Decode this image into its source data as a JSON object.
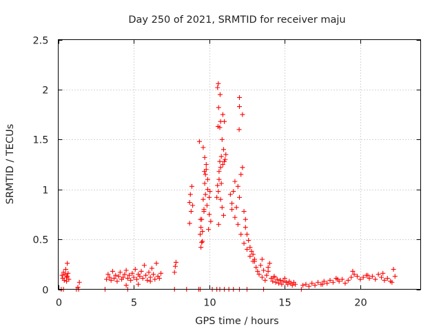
{
  "chart_data": {
    "type": "scatter",
    "title": "Day 250 of 2021, SRMTID for receiver maju",
    "xlabel": "GPS time / hours",
    "ylabel": "SRMTID / TECUs",
    "xlim": [
      0,
      24
    ],
    "ylim": [
      0,
      2.5
    ],
    "x_ticks": [
      0,
      5,
      10,
      15,
      20
    ],
    "y_ticks": [
      0,
      0.5,
      1,
      1.5,
      2,
      2.5
    ],
    "x_tick_labels": [
      "0",
      "5",
      "10",
      "15",
      "20"
    ],
    "y_tick_labels": [
      "0",
      "0.5",
      "1",
      "1.5",
      "2",
      "2.5"
    ],
    "grid": true,
    "marker": "+",
    "series": [
      {
        "name": "SRMTID",
        "color": "#ff0000",
        "x": [
          0.25,
          0.3,
          0.35,
          0.4,
          0.45,
          0.5,
          0.55,
          0.6,
          0.65,
          0.7,
          0.55,
          0.6,
          1.4,
          1.3,
          3.2,
          3.3,
          3.4,
          3.5,
          3.6,
          3.7,
          3.8,
          3.9,
          4.0,
          4.1,
          4.2,
          4.3,
          4.4,
          4.5,
          4.6,
          4.7,
          4.8,
          4.9,
          5.0,
          5.1,
          5.2,
          5.3,
          5.4,
          5.5,
          5.6,
          5.7,
          5.8,
          5.9,
          6.0,
          6.1,
          6.2,
          6.3,
          6.4,
          6.5,
          6.6,
          6.7,
          6.8,
          5.3,
          6.1,
          4.5,
          7.7,
          7.75,
          7.8,
          8.7,
          8.75,
          8.8,
          8.85,
          8.9,
          8.7,
          9.4,
          9.45,
          9.5,
          9.55,
          9.6,
          9.65,
          9.7,
          9.75,
          9.8,
          9.85,
          9.9,
          9.95,
          10.0,
          10.05,
          10.1,
          9.5,
          9.6,
          9.7,
          9.8,
          9.9,
          10.0,
          9.45,
          9.55,
          9.65,
          9.75,
          10.5,
          10.55,
          10.6,
          10.65,
          10.7,
          10.75,
          10.8,
          10.85,
          10.9,
          10.95,
          11.0,
          11.05,
          11.1,
          10.6,
          10.7,
          10.8,
          10.9,
          11.0,
          10.55,
          10.65,
          10.75,
          10.85,
          10.95,
          11.4,
          11.5,
          11.6,
          11.7,
          11.8,
          11.9,
          12.0,
          12.1,
          12.2,
          12.3,
          12.4,
          12.5,
          12.6,
          12.7,
          12.8,
          12.9,
          13.0,
          11.5,
          11.7,
          11.9,
          12.1,
          12.3,
          12.5,
          12.7,
          12.9,
          12.0,
          12.2,
          12.4,
          13.0,
          13.1,
          13.2,
          13.3,
          13.4,
          13.5,
          13.6,
          13.7,
          13.8,
          13.9,
          14.0,
          14.1,
          14.2,
          14.3,
          14.4,
          14.5,
          14.6,
          14.7,
          14.8,
          14.9,
          15.0,
          15.1,
          15.2,
          15.3,
          15.4,
          15.5,
          15.6,
          15.7,
          13.5,
          13.9,
          14.3,
          14.7,
          15.1,
          16.2,
          16.4,
          16.6,
          16.8,
          17.0,
          17.2,
          17.4,
          17.6,
          17.8,
          18.0,
          18.2,
          18.4,
          18.6,
          18.8,
          19.0,
          19.2,
          19.4,
          19.6,
          19.8,
          20.0,
          20.2,
          20.4,
          20.6,
          20.8,
          21.0,
          21.2,
          21.4,
          21.6,
          21.8,
          22.0,
          22.1,
          22.2,
          22.3,
          17.5,
          18.5,
          19.5,
          20.5,
          21.5,
          0.2,
          0.35,
          1.2,
          1.35,
          3.1,
          4.6,
          7.7,
          8.5,
          9.3,
          9.4,
          10.2,
          10.5,
          10.7,
          11.0,
          11.3,
          11.6,
          12.0,
          12.5,
          13.6,
          16.1,
          10.58,
          10.62,
          10.72,
          10.75,
          11.98,
          12.0,
          9.35,
          9.42,
          9.68,
          10.62
        ],
        "y": [
          0.14,
          0.11,
          0.17,
          0.09,
          0.15,
          0.2,
          0.12,
          0.26,
          0.16,
          0.1,
          0.08,
          0.13,
          0.07,
          0.02,
          0.1,
          0.15,
          0.12,
          0.09,
          0.18,
          0.11,
          0.14,
          0.08,
          0.13,
          0.17,
          0.1,
          0.12,
          0.15,
          0.19,
          0.11,
          0.14,
          0.09,
          0.16,
          0.12,
          0.2,
          0.1,
          0.15,
          0.13,
          0.18,
          0.11,
          0.24,
          0.14,
          0.09,
          0.17,
          0.12,
          0.21,
          0.15,
          0.1,
          0.26,
          0.13,
          0.11,
          0.16,
          0.05,
          0.08,
          0.04,
          0.17,
          0.23,
          0.27,
          0.87,
          0.95,
          0.78,
          1.03,
          0.84,
          0.66,
          0.55,
          0.62,
          0.7,
          0.48,
          0.9,
          0.78,
          1.06,
          0.95,
          1.2,
          0.84,
          1.1,
          0.6,
          0.75,
          0.98,
          0.68,
          0.47,
          1.42,
          1.32,
          1.25,
          1.0,
          0.92,
          0.42,
          0.58,
          0.8,
          1.15,
          0.92,
          1.04,
          0.98,
          1.1,
          1.28,
          1.22,
          1.33,
          1.5,
          1.75,
          1.4,
          1.28,
          1.3,
          1.35,
          2.06,
          1.62,
          1.06,
          1.25,
          1.68,
          2.02,
          1.18,
          0.9,
          0.82,
          0.74,
          0.95,
          0.86,
          0.98,
          1.08,
          0.82,
          1.03,
          0.92,
          1.15,
          1.22,
          0.78,
          0.7,
          0.55,
          0.49,
          0.42,
          0.38,
          0.35,
          0.3,
          0.8,
          0.72,
          0.65,
          0.55,
          0.46,
          0.4,
          0.33,
          0.28,
          1.83,
          1.75,
          0.62,
          0.28,
          0.22,
          0.18,
          0.15,
          0.24,
          0.12,
          0.19,
          0.09,
          0.14,
          0.22,
          0.26,
          0.11,
          0.08,
          0.13,
          0.07,
          0.1,
          0.06,
          0.09,
          0.05,
          0.08,
          0.11,
          0.07,
          0.05,
          0.08,
          0.06,
          0.04,
          0.07,
          0.05,
          0.3,
          0.18,
          0.12,
          0.09,
          0.07,
          0.04,
          0.05,
          0.03,
          0.06,
          0.04,
          0.07,
          0.05,
          0.08,
          0.06,
          0.09,
          0.07,
          0.11,
          0.08,
          0.1,
          0.06,
          0.09,
          0.12,
          0.15,
          0.13,
          0.1,
          0.12,
          0.14,
          0.11,
          0.13,
          0.1,
          0.15,
          0.12,
          0.09,
          0.11,
          0.08,
          0.07,
          0.2,
          0.13,
          0.05,
          0.1,
          0.18,
          0.14,
          0.16,
          0.0,
          0.0,
          0.0,
          0.0,
          0.0,
          0.0,
          0.0,
          0.0,
          0.0,
          0.0,
          0.0,
          0.0,
          0.0,
          0.0,
          0.0,
          0.0,
          0.0,
          0.0,
          0.0,
          0.0,
          1.63,
          1.82,
          1.95,
          1.68,
          1.6,
          1.92,
          1.48,
          0.7,
          1.18,
          0.65
        ]
      }
    ]
  }
}
